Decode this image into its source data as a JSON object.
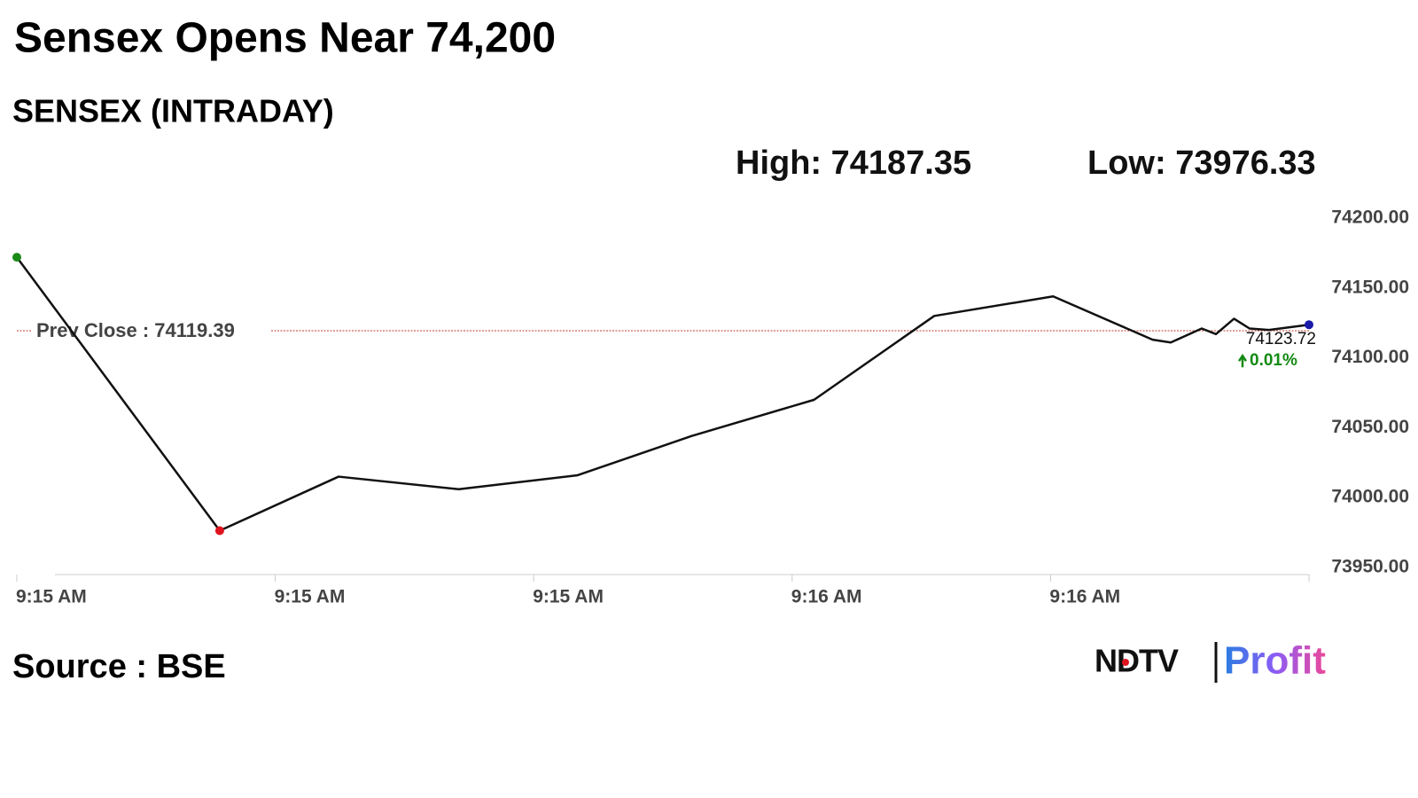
{
  "chart_data": {
    "type": "line",
    "title": "Sensex Opens Near 74,200",
    "subtitle": "SENSEX (INTRADAY)",
    "high_label": "High: 74187.35",
    "low_label": "Low: 73976.33",
    "x": [
      0,
      15.7,
      24.9,
      34.2,
      43.4,
      52.2,
      61.7,
      71.0,
      80.2,
      87.9,
      89.3,
      91.7,
      92.8,
      94.2,
      95.4,
      96.9,
      100
    ],
    "values": [
      74172,
      73976.33,
      74015,
      74006,
      74016,
      74044,
      74070,
      74130,
      74144,
      74113,
      74111,
      74121,
      74117,
      74128,
      74121,
      74120,
      74123.72
    ],
    "color": "#111111",
    "start_color": "#1a8a1a",
    "low_color": "#e0141e",
    "end_color": "#1a1aa8",
    "xlim": [
      0,
      100
    ],
    "xticks": [
      {
        "value": 0,
        "label": "9:15 AM"
      },
      {
        "value": 20,
        "label": "9:15 AM"
      },
      {
        "value": 40,
        "label": "9:15 AM"
      },
      {
        "value": 60,
        "label": "9:16 AM"
      },
      {
        "value": 80,
        "label": "9:16 AM"
      }
    ],
    "ylim": [
      73950,
      74200
    ],
    "yticks": [
      {
        "value": 73950,
        "label": "73950.00"
      },
      {
        "value": 74000,
        "label": "74000.00"
      },
      {
        "value": 74050,
        "label": "74050.00"
      },
      {
        "value": 74100,
        "label": "74100.00"
      },
      {
        "value": 74150,
        "label": "74150.00"
      },
      {
        "value": 74200,
        "label": "74200.00"
      }
    ],
    "prev_close": {
      "value": 74119.39,
      "label": "Prev Close : 74119.39"
    },
    "last_label": "74123.72",
    "change_label": "0.01%",
    "change_color": "#138a13",
    "source": "Source : BSE",
    "logo": [
      "NDTV",
      "Profit"
    ]
  }
}
